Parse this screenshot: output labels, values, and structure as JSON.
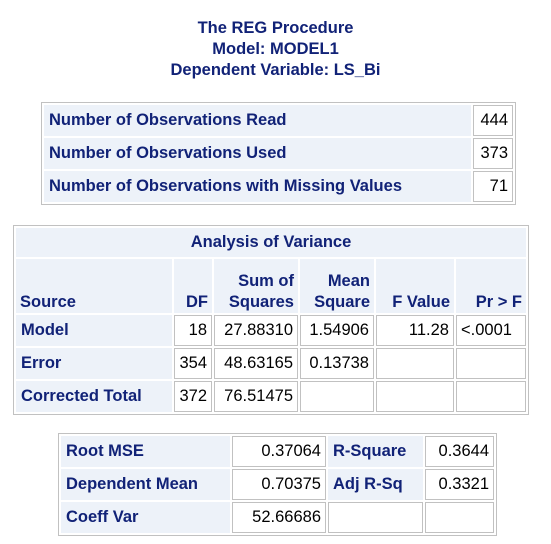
{
  "titles": {
    "procedure": "The REG Procedure",
    "model": "Model: MODEL1",
    "dependent": "Dependent Variable: LS_Bi"
  },
  "observations": {
    "rows": [
      {
        "label": "Number of Observations Read",
        "value": "444"
      },
      {
        "label": "Number of Observations Used",
        "value": "373"
      },
      {
        "label": "Number of Observations with Missing Values",
        "value": "71"
      }
    ]
  },
  "anova": {
    "caption": "Analysis of Variance",
    "headers": {
      "source": "Source",
      "df": "DF",
      "ss_line1": "Sum of",
      "ss_line2": "Squares",
      "ms_line1": "Mean",
      "ms_line2": "Square",
      "f": "F Value",
      "p": "Pr > F"
    },
    "rows": [
      {
        "source": "Model",
        "df": "18",
        "ss": "27.88310",
        "ms": "1.54906",
        "f": "11.28",
        "p": "<.0001"
      },
      {
        "source": "Error",
        "df": "354",
        "ss": "48.63165",
        "ms": "0.13738",
        "f": "",
        "p": ""
      },
      {
        "source": "Corrected Total",
        "df": "372",
        "ss": "76.51475",
        "ms": "",
        "f": "",
        "p": ""
      }
    ]
  },
  "fit": {
    "rows": [
      {
        "label1": "Root MSE",
        "value1": "0.37064",
        "label2": "R-Square",
        "value2": "0.3644"
      },
      {
        "label1": "Dependent Mean",
        "value1": "0.70375",
        "label2": "Adj R-Sq",
        "value2": "0.3321"
      },
      {
        "label1": "Coeff Var",
        "value1": "52.66686",
        "label2": "",
        "value2": ""
      }
    ]
  },
  "colors": {
    "header_bg": "#edf2f9",
    "header_text": "#112277",
    "border": "#c1c1c1"
  }
}
